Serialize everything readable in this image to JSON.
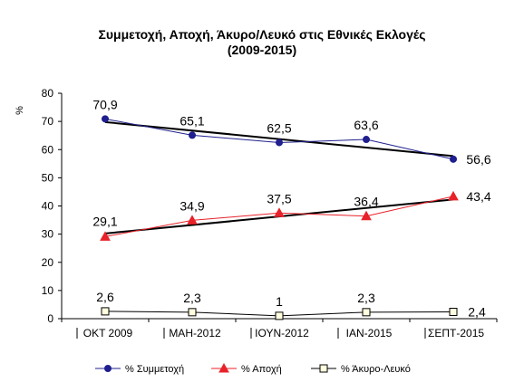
{
  "chart_data": {
    "type": "line",
    "title_line1": "Συμμετοχή, Αποχή, Άκυρο/Λευκό στις Εθνικές Εκλογές",
    "title_line2": "(2009-2015)",
    "ylabel": "%",
    "xlabel": "",
    "categories": [
      "ΟΚΤ 2009",
      "ΜΑΗ-2012",
      "ΙΟΥΝ-2012",
      "ΙΑΝ-2015",
      "ΣΕΠΤ-2015"
    ],
    "ylim": [
      0,
      80
    ],
    "yticks": [
      0,
      10,
      20,
      30,
      40,
      50,
      60,
      70,
      80
    ],
    "grid": false,
    "legend_position": "bottom",
    "series": [
      {
        "name": "% Συμμετοχή",
        "values": [
          70.9,
          65.1,
          62.5,
          63.6,
          56.6
        ],
        "labels": [
          "70,9",
          "65,1",
          "62,5",
          "63,6",
          "56,6"
        ],
        "color": "#1f1f8f",
        "marker": "circle",
        "trendline": true
      },
      {
        "name": "% Αποχή",
        "values": [
          29.1,
          34.9,
          37.5,
          36.4,
          43.4
        ],
        "labels": [
          "29,1",
          "34,9",
          "37,5",
          "36,4",
          "43,4"
        ],
        "color": "#e8222a",
        "marker": "triangle",
        "trendline": true
      },
      {
        "name": "% Άκυρο-Λευκό",
        "values": [
          2.6,
          2.3,
          1.0,
          2.3,
          2.4
        ],
        "labels": [
          "2,6",
          "2,3",
          "1",
          "2,3",
          "2,4"
        ],
        "color": "#000000",
        "marker": "square",
        "trendline": false
      }
    ]
  }
}
